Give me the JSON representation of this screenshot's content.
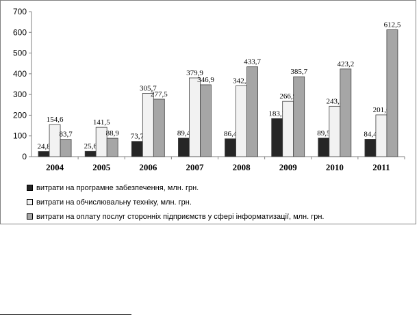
{
  "chart_data": {
    "type": "bar",
    "categories": [
      "2004",
      "2005",
      "2006",
      "2007",
      "2008",
      "2009",
      "2010",
      "2011"
    ],
    "series": [
      {
        "name": "витрати на програмне забезпечення, млн. грн.",
        "values": [
          24.8,
          25.6,
          73.7,
          89.4,
          86.4,
          183.7,
          89.5,
          84.4
        ],
        "labels": [
          "24,8",
          "25,6",
          "73,7",
          "89,4",
          "86,4",
          "183,7",
          "89,5",
          "84,4"
        ],
        "color": "#262626"
      },
      {
        "name": "витрати на обчислювальну техніку, млн. грн.",
        "values": [
          154.6,
          141.5,
          305.7,
          379.9,
          342.5,
          266.9,
          243.2,
          201.6
        ],
        "labels": [
          "154,6",
          "141,5",
          "305,7",
          "379,9",
          "342,5",
          "266,9",
          "243,2",
          "201,6"
        ],
        "color": "#f2f2f2"
      },
      {
        "name": "витрати на оплату послуг сторонніх підприємств у сфері інформатизації, млн. грн.",
        "values": [
          83.7,
          88.9,
          277.5,
          346.9,
          433.7,
          385.7,
          423.2,
          612.5
        ],
        "labels": [
          "83,7",
          "88,9",
          "277,5",
          "346,9",
          "433,7",
          "385,7",
          "423,2",
          "612,5"
        ],
        "color": "#a6a6a6"
      }
    ],
    "ylim": [
      0,
      700
    ],
    "yticks": [
      "0",
      "100",
      "200",
      "300",
      "400",
      "500",
      "600",
      "700"
    ],
    "grid": false,
    "legend": "bottom"
  }
}
